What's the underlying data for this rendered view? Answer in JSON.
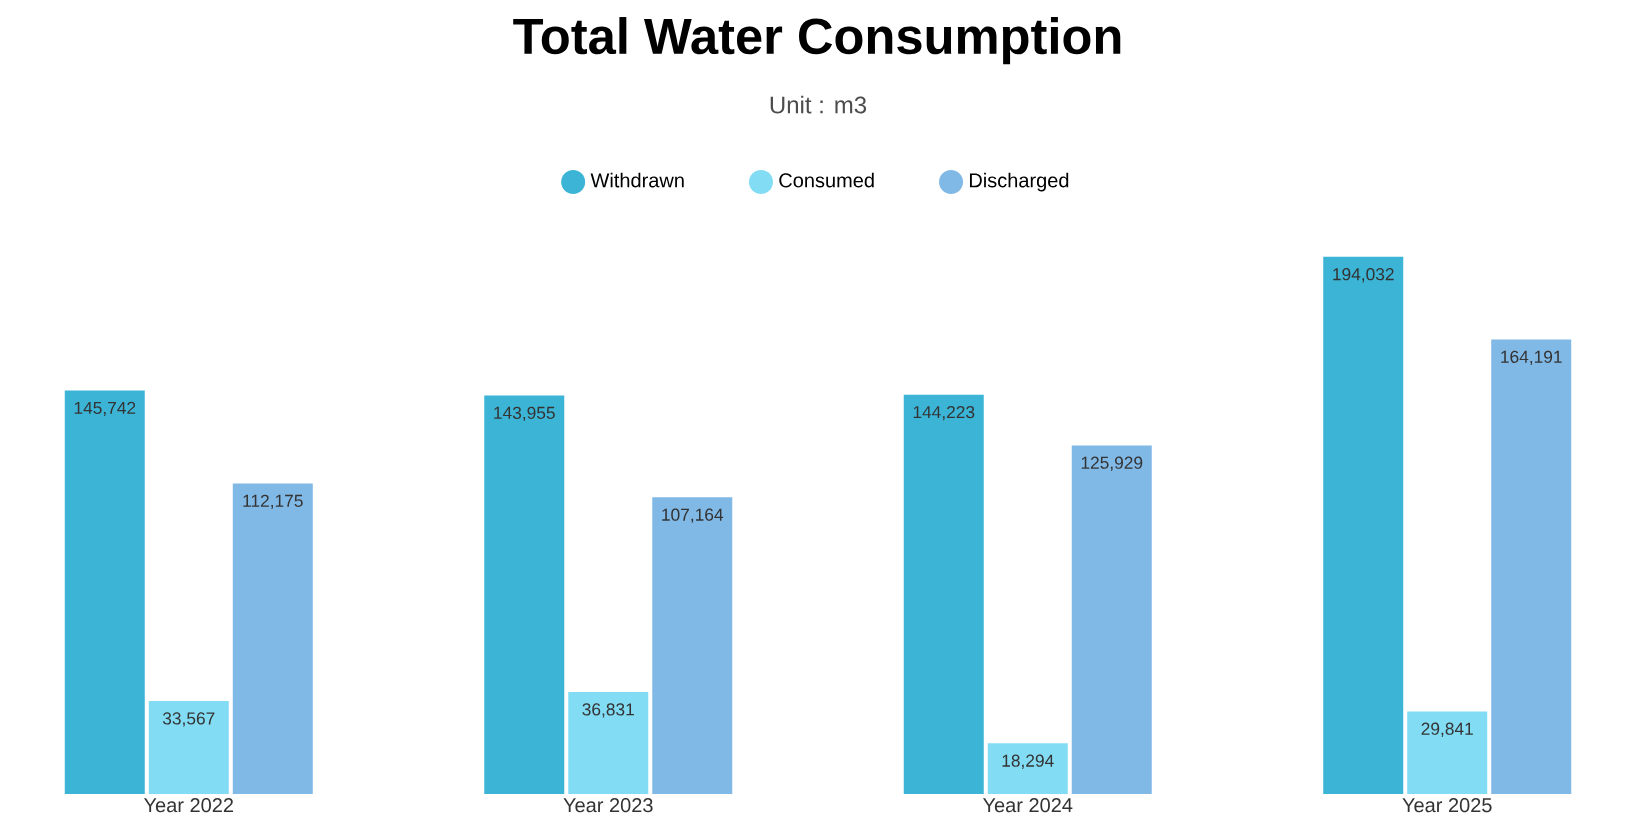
{
  "chart_data": {
    "type": "bar",
    "title": "Total Water Consumption",
    "subtitle": "Unit : m3",
    "categories": [
      "Year 2022",
      "Year 2023",
      "Year 2024",
      "Year 2025"
    ],
    "legend": "top",
    "marker": "circle",
    "series": [
      {
        "name": "Withdrawn",
        "color": "#3bb4d6",
        "values": [
          145742,
          143955,
          144223,
          194032
        ],
        "value_labels": [
          "145,742",
          "143,955",
          "144,223",
          "194,032"
        ]
      },
      {
        "name": "Consumed",
        "color": "#82dcf4",
        "values": [
          33567,
          36831,
          18294,
          29841
        ],
        "value_labels": [
          "33,567",
          "36,831",
          "18,294",
          "29,841"
        ]
      },
      {
        "name": "Discharged",
        "color": "#80b8e6",
        "values": [
          112175,
          107164,
          125929,
          164191
        ],
        "value_labels": [
          "112,175",
          "107,164",
          "125,929",
          "164,191"
        ]
      }
    ]
  }
}
